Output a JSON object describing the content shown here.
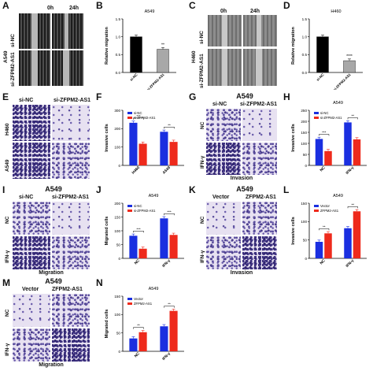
{
  "panel_letters": [
    "A",
    "B",
    "C",
    "D",
    "E",
    "F",
    "G",
    "H",
    "I",
    "J",
    "K",
    "L",
    "M",
    "N"
  ],
  "wound_A": {
    "col1": "0h",
    "col2": "24h",
    "row_group": "A549",
    "row1": "si-NC",
    "row2": "si-ZFPM2-AS1"
  },
  "wound_C": {
    "col1": "0h",
    "col2": "24h",
    "row_group": "H460",
    "row1": "si-NC",
    "row2": "si-ZFPM2-AS1"
  },
  "panel_E": {
    "col1": "si-NC",
    "col2": "si-ZFPM2-AS1",
    "row1": "H460",
    "row2": "A549"
  },
  "panel_G": {
    "title": "A549",
    "col1": "si-NC",
    "col2": "si-ZFPM2-AS1",
    "row1": "NC",
    "row2": "IFN-γ",
    "caption": "Invasion"
  },
  "panel_I": {
    "title": "A549",
    "col1": "si-NC",
    "col2": "si-ZFPM2-AS1",
    "row1": "NC",
    "row2": "IFN-γ",
    "caption": "Migration"
  },
  "panel_K": {
    "title": "A549",
    "col1": "Vector",
    "col2": "ZFPM2-AS1",
    "row1": "NC",
    "row2": "IFN-γ",
    "caption": "Invasion"
  },
  "panel_M": {
    "title": "A549",
    "col1": "Vector",
    "col2": "ZFPM2-AS1",
    "row1": "NC",
    "row2": "IFN-γ",
    "caption": "Migration"
  },
  "colors": {
    "blue": "#1a2fe0",
    "red": "#ee2a1c",
    "black": "#000000",
    "gray": "#a8a8a8"
  },
  "chart_data": [
    {
      "panel": "B",
      "type": "bar",
      "title": "A549",
      "ylabel": "Relative migration",
      "categories": [
        "si-NC",
        "si-ZFPM2-AS1"
      ],
      "values": [
        1.0,
        0.65
      ],
      "colors": [
        "#000000",
        "#a8a8a8"
      ],
      "ylim": [
        0,
        1.5
      ],
      "yticks": [
        "0.0",
        "0.5",
        "1.0",
        "1.5"
      ],
      "sig": [
        {
          "over": 1,
          "text": "**"
        }
      ]
    },
    {
      "panel": "D",
      "type": "bar",
      "title": "H460",
      "ylabel": "Relative migration",
      "categories": [
        "si-NC",
        "si-ZFPM2-AS1"
      ],
      "values": [
        1.0,
        0.33
      ],
      "colors": [
        "#000000",
        "#a8a8a8"
      ],
      "ylim": [
        0,
        1.5
      ],
      "yticks": [
        "0.0",
        "0.5",
        "1.0",
        "1.5"
      ],
      "sig": [
        {
          "over": 1,
          "text": "****"
        }
      ]
    },
    {
      "panel": "F",
      "type": "bar",
      "title": "",
      "ylabel": "Invasive cells",
      "categories": [
        "H460",
        "A549"
      ],
      "series": [
        {
          "name": "si-NC",
          "values": [
            232,
            183
          ],
          "color": "#1a2fe0"
        },
        {
          "name": "si-ZFPM2-AS1",
          "values": [
            118,
            128
          ],
          "color": "#ee2a1c"
        }
      ],
      "ylim": [
        0,
        300
      ],
      "yticks": [
        "0",
        "100",
        "200",
        "300"
      ],
      "sig": [
        {
          "group": 0,
          "text": "***"
        },
        {
          "group": 1,
          "text": "**"
        }
      ]
    },
    {
      "panel": "H",
      "type": "bar",
      "title": "A549",
      "ylabel": "Invasive cells",
      "categories": [
        "NC",
        "IFN-γ"
      ],
      "series": [
        {
          "name": "si-NC",
          "values": [
            120,
            195
          ],
          "color": "#1a2fe0"
        },
        {
          "name": "si-ZFPM2-AS1",
          "values": [
            65,
            118
          ],
          "color": "#ee2a1c"
        }
      ],
      "ylim": [
        0,
        250
      ],
      "yticks": [
        "0",
        "50",
        "100",
        "150",
        "200",
        "250"
      ],
      "sig": [
        {
          "group": 0,
          "text": "***"
        },
        {
          "group": 1,
          "text": "**"
        }
      ]
    },
    {
      "panel": "J",
      "type": "bar",
      "title": "A549",
      "ylabel": "Migrated cells",
      "categories": [
        "NC",
        "IFN-γ"
      ],
      "series": [
        {
          "name": "si-NC",
          "values": [
            82,
            145
          ],
          "color": "#1a2fe0"
        },
        {
          "name": "si-ZFPM2-AS1",
          "values": [
            35,
            85
          ],
          "color": "#ee2a1c"
        }
      ],
      "ylim": [
        0,
        200
      ],
      "yticks": [
        "0",
        "50",
        "100",
        "150",
        "200"
      ],
      "sig": [
        {
          "group": 0,
          "text": "***"
        },
        {
          "group": 1,
          "text": "***"
        }
      ]
    },
    {
      "panel": "L",
      "type": "bar",
      "title": "A549",
      "ylabel": "Invasive cells",
      "categories": [
        "NC",
        "IFN-γ"
      ],
      "series": [
        {
          "name": "Vector",
          "values": [
            45,
            82
          ],
          "color": "#1a2fe0"
        },
        {
          "name": "ZFPM2-AS1",
          "values": [
            68,
            128
          ],
          "color": "#ee2a1c"
        }
      ],
      "ylim": [
        0,
        150
      ],
      "yticks": [
        "0",
        "50",
        "100",
        "150"
      ],
      "sig": [
        {
          "group": 0,
          "text": "**"
        },
        {
          "group": 1,
          "text": "**"
        }
      ]
    },
    {
      "panel": "N",
      "type": "bar",
      "title": "A549",
      "ylabel": "Migrated cells",
      "categories": [
        "NC",
        "IFN-γ"
      ],
      "series": [
        {
          "name": "Vector",
          "values": [
            35,
            68
          ],
          "color": "#1a2fe0"
        },
        {
          "name": "ZFPM2-AS1",
          "values": [
            52,
            110
          ],
          "color": "#ee2a1c"
        }
      ],
      "ylim": [
        0,
        150
      ],
      "yticks": [
        "0",
        "50",
        "100",
        "150"
      ],
      "sig": [
        {
          "group": 0,
          "text": "**"
        },
        {
          "group": 1,
          "text": "**"
        }
      ]
    }
  ]
}
